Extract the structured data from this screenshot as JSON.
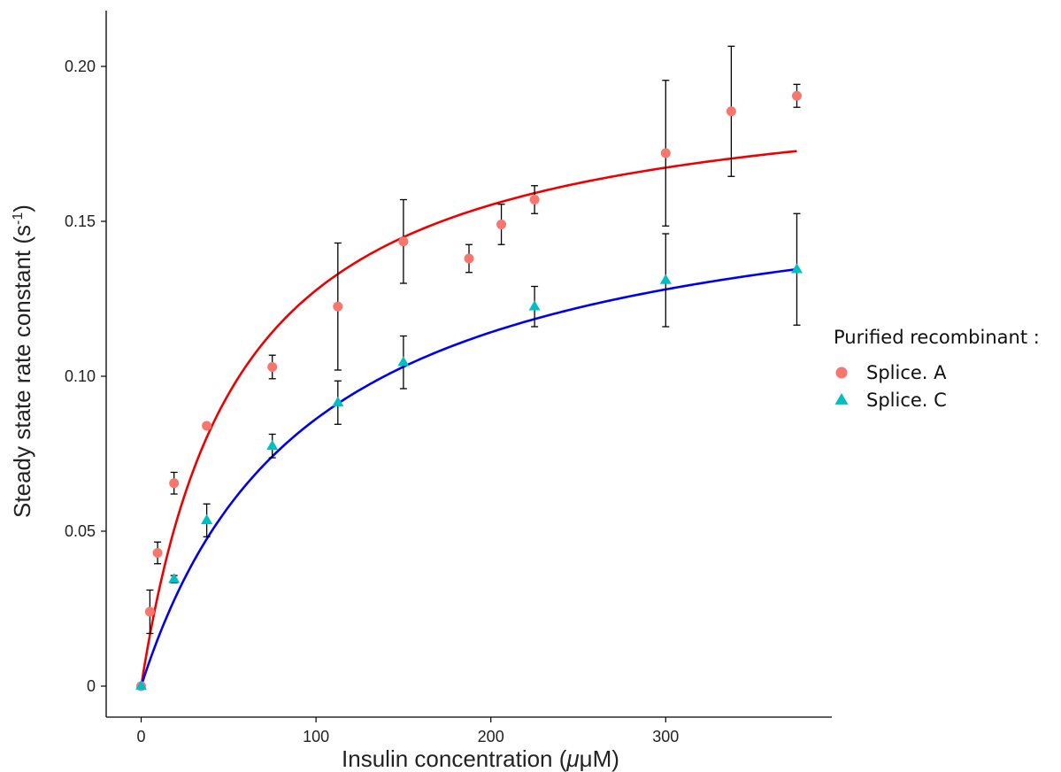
{
  "chart_data": {
    "type": "scatter",
    "xlabel_prefix": "Insulin concentration (",
    "xlabel_unit": "μM)",
    "ylabel_prefix": "Steady state rate constant (s",
    "ylabel_sup": "-1",
    "ylabel_suffix": ")",
    "xlim": [
      -20,
      395
    ],
    "ylim": [
      -0.01,
      0.218
    ],
    "x_ticks": [
      0,
      100,
      200,
      300
    ],
    "x_tick_labels": [
      "0",
      "100",
      "200",
      "300"
    ],
    "y_ticks": [
      0,
      0.05,
      0.1,
      0.15,
      0.2
    ],
    "y_tick_labels": [
      "0",
      "0.05",
      "0.10",
      "0.15",
      "0.20"
    ],
    "grid": false,
    "legend": {
      "title": "Purified recombinant :",
      "position": "right"
    },
    "series": [
      {
        "name": "Splice. A",
        "marker": "circle",
        "color": "#F8766D",
        "fit_color": "#EE0000",
        "fit": {
          "vmax": 0.198,
          "km": 55
        },
        "points": [
          {
            "x": 0,
            "y": 0,
            "err": 0
          },
          {
            "x": 5,
            "y": 0.024,
            "err": 0.007
          },
          {
            "x": 9.4,
            "y": 0.043,
            "err": 0.0035
          },
          {
            "x": 18.8,
            "y": 0.0655,
            "err": 0.0035
          },
          {
            "x": 37.5,
            "y": 0.084,
            "err": 0
          },
          {
            "x": 75,
            "y": 0.103,
            "err": 0.0038
          },
          {
            "x": 112.5,
            "y": 0.1225,
            "err": 0.0205
          },
          {
            "x": 150,
            "y": 0.1435,
            "err": 0.0135
          },
          {
            "x": 187.5,
            "y": 0.138,
            "err": 0.0045
          },
          {
            "x": 206,
            "y": 0.149,
            "err": 0.0065
          },
          {
            "x": 225,
            "y": 0.157,
            "err": 0.0045
          },
          {
            "x": 300,
            "y": 0.172,
            "err": 0.0235
          },
          {
            "x": 337.5,
            "y": 0.1855,
            "err": 0.021
          },
          {
            "x": 375,
            "y": 0.1905,
            "err": 0.0037
          }
        ]
      },
      {
        "name": "Splice. C",
        "marker": "triangle",
        "color": "#00BFC4",
        "fit_color": "#0000EE",
        "fit": {
          "vmax": 0.169,
          "km": 96
        },
        "points": [
          {
            "x": 0,
            "y": 0,
            "err": 0
          },
          {
            "x": 18.8,
            "y": 0.0345,
            "err": 0.0012
          },
          {
            "x": 37.5,
            "y": 0.0535,
            "err": 0.0053
          },
          {
            "x": 75,
            "y": 0.0775,
            "err": 0.0038
          },
          {
            "x": 112.5,
            "y": 0.0915,
            "err": 0.007
          },
          {
            "x": 150,
            "y": 0.1045,
            "err": 0.0085
          },
          {
            "x": 225,
            "y": 0.1225,
            "err": 0.0065
          },
          {
            "x": 300,
            "y": 0.131,
            "err": 0.015
          },
          {
            "x": 375,
            "y": 0.1345,
            "err": 0.018
          }
        ]
      }
    ]
  }
}
